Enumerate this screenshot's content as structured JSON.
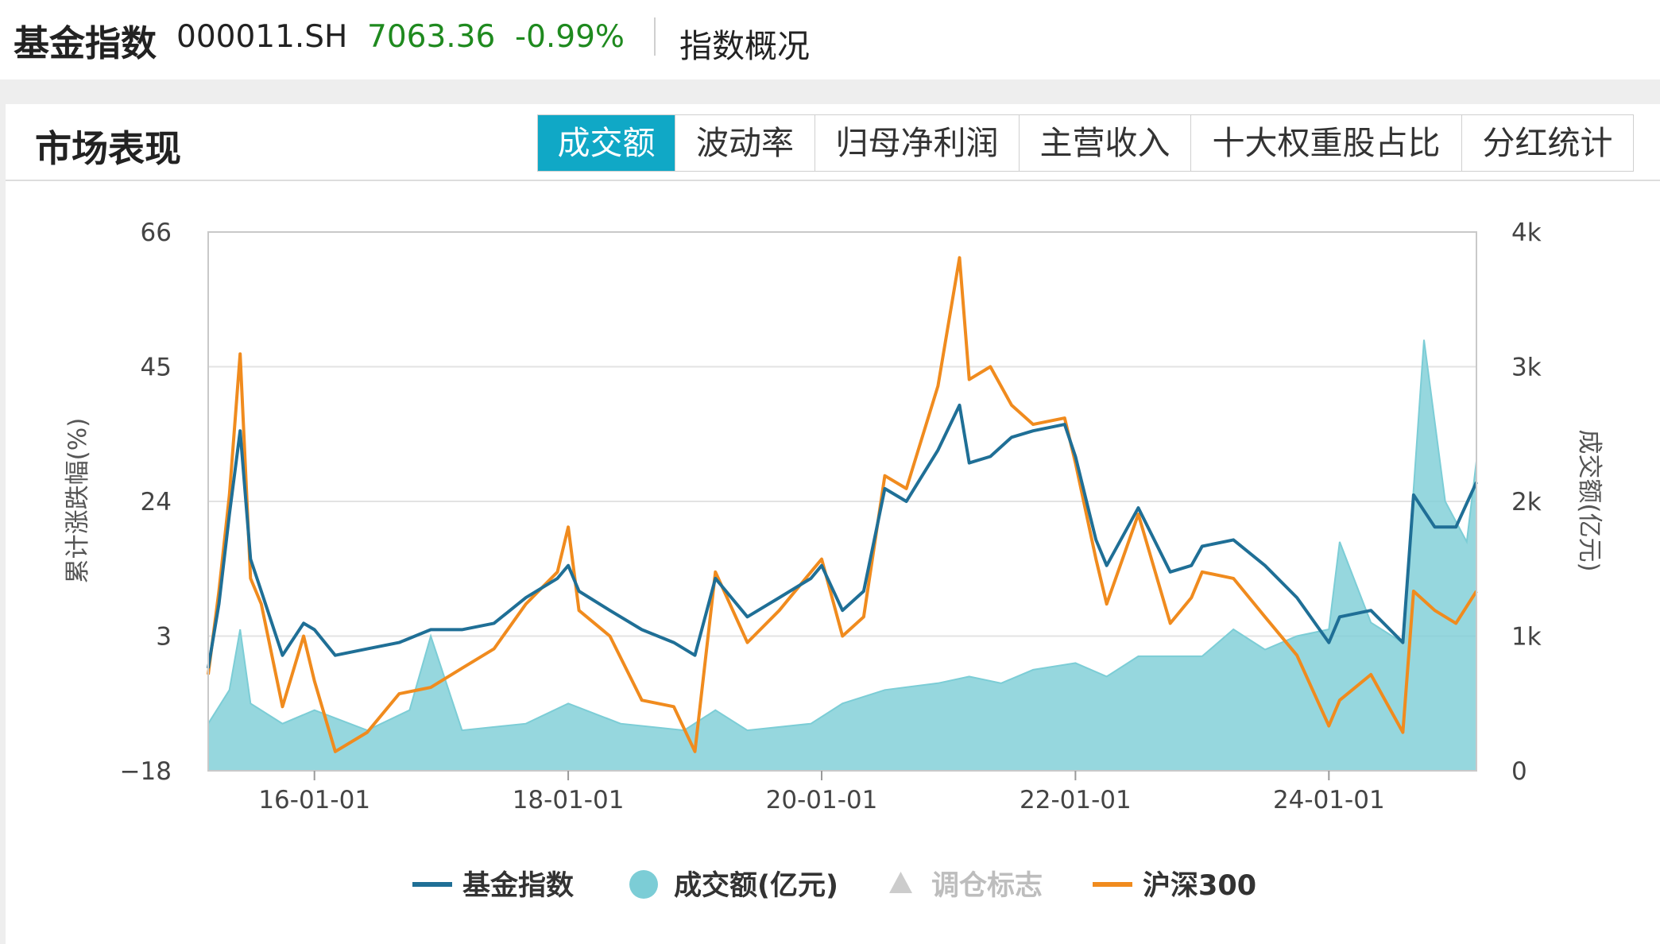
{
  "header": {
    "name": "基金指数",
    "code": "000011.SH",
    "price": "7063.36",
    "change": "-0.99%",
    "overview_link": "指数概况"
  },
  "section": {
    "title": "市场表现",
    "tabs": [
      {
        "label": "成交额",
        "active": true
      },
      {
        "label": "波动率",
        "active": false
      },
      {
        "label": "归母净利润",
        "active": false
      },
      {
        "label": "主营收入",
        "active": false
      },
      {
        "label": "十大权重股占比",
        "active": false
      },
      {
        "label": "分红统计",
        "active": false
      }
    ]
  },
  "colors": {
    "fund_index": "#1f6f96",
    "volume": "#7ccdd6",
    "csi300": "#f08b1e",
    "rebalance": "#cccccc",
    "active_tab": "#10a8c6",
    "price_down": "#1f8a1f"
  },
  "chart_data": {
    "type": "line",
    "y_left_label": "累计涨跌幅(%)",
    "y_right_label": "成交额(亿元)",
    "y_left_range": [
      -18,
      66
    ],
    "y_left_ticks": [
      "66",
      "45",
      "24",
      "3",
      "−18"
    ],
    "y_right_range": [
      0,
      4000
    ],
    "y_right_ticks": [
      "4k",
      "3k",
      "2k",
      "1k",
      "0"
    ],
    "x_range": [
      "2015-03-01",
      "2025-03-01"
    ],
    "x_ticks": [
      {
        "date": "2016-01-01",
        "label": "16-01-01"
      },
      {
        "date": "2018-01-01",
        "label": "18-01-01"
      },
      {
        "date": "2020-01-01",
        "label": "20-01-01"
      },
      {
        "date": "2022-01-01",
        "label": "22-01-01"
      },
      {
        "date": "2024-01-01",
        "label": "24-01-01"
      }
    ],
    "legend": {
      "position": "bottom",
      "items": [
        {
          "name": "基金指数",
          "marker": "line"
        },
        {
          "name": "成交额(亿元)",
          "marker": "circle"
        },
        {
          "name": "调仓标志",
          "marker": "triangle"
        },
        {
          "name": "沪深300",
          "marker": "line"
        }
      ]
    },
    "series": [
      {
        "name": "基金指数",
        "axis": "left",
        "points": [
          [
            "2015-03-01",
            -2
          ],
          [
            "2015-04-01",
            8
          ],
          [
            "2015-05-01",
            22
          ],
          [
            "2015-06-01",
            35
          ],
          [
            "2015-07-01",
            15
          ],
          [
            "2015-08-01",
            10
          ],
          [
            "2015-10-01",
            0
          ],
          [
            "2015-12-01",
            5
          ],
          [
            "2016-01-01",
            4
          ],
          [
            "2016-03-01",
            0
          ],
          [
            "2016-06-01",
            1
          ],
          [
            "2016-09-01",
            2
          ],
          [
            "2016-12-01",
            4
          ],
          [
            "2017-03-01",
            4
          ],
          [
            "2017-06-01",
            5
          ],
          [
            "2017-09-01",
            9
          ],
          [
            "2017-12-01",
            12
          ],
          [
            "2018-01-01",
            14
          ],
          [
            "2018-02-01",
            10
          ],
          [
            "2018-05-01",
            7
          ],
          [
            "2018-08-01",
            4
          ],
          [
            "2018-11-01",
            2
          ],
          [
            "2019-01-01",
            0
          ],
          [
            "2019-03-01",
            12
          ],
          [
            "2019-06-01",
            6
          ],
          [
            "2019-09-01",
            9
          ],
          [
            "2019-12-01",
            12
          ],
          [
            "2020-01-01",
            14
          ],
          [
            "2020-03-01",
            7
          ],
          [
            "2020-05-01",
            10
          ],
          [
            "2020-07-01",
            26
          ],
          [
            "2020-09-01",
            24
          ],
          [
            "2020-12-01",
            32
          ],
          [
            "2021-02-01",
            39
          ],
          [
            "2021-03-01",
            30
          ],
          [
            "2021-05-01",
            31
          ],
          [
            "2021-07-01",
            34
          ],
          [
            "2021-09-01",
            35
          ],
          [
            "2021-12-01",
            36
          ],
          [
            "2022-01-01",
            31
          ],
          [
            "2022-03-01",
            18
          ],
          [
            "2022-04-01",
            14
          ],
          [
            "2022-07-01",
            23
          ],
          [
            "2022-10-01",
            13
          ],
          [
            "2022-12-01",
            14
          ],
          [
            "2023-01-01",
            17
          ],
          [
            "2023-04-01",
            18
          ],
          [
            "2023-07-01",
            14
          ],
          [
            "2023-10-01",
            9
          ],
          [
            "2024-01-01",
            2
          ],
          [
            "2024-02-01",
            6
          ],
          [
            "2024-05-01",
            7
          ],
          [
            "2024-08-01",
            2
          ],
          [
            "2024-09-01",
            25
          ],
          [
            "2024-11-01",
            20
          ],
          [
            "2025-01-01",
            20
          ],
          [
            "2025-03-01",
            27
          ]
        ]
      },
      {
        "name": "沪深300",
        "axis": "left",
        "points": [
          [
            "2015-03-01",
            -3
          ],
          [
            "2015-04-01",
            10
          ],
          [
            "2015-05-01",
            25
          ],
          [
            "2015-06-01",
            47
          ],
          [
            "2015-07-01",
            12
          ],
          [
            "2015-08-01",
            8
          ],
          [
            "2015-10-01",
            -8
          ],
          [
            "2015-12-01",
            3
          ],
          [
            "2016-01-01",
            -4
          ],
          [
            "2016-03-01",
            -15
          ],
          [
            "2016-06-01",
            -12
          ],
          [
            "2016-09-01",
            -6
          ],
          [
            "2016-12-01",
            -5
          ],
          [
            "2017-03-01",
            -2
          ],
          [
            "2017-06-01",
            1
          ],
          [
            "2017-09-01",
            8
          ],
          [
            "2017-12-01",
            13
          ],
          [
            "2018-01-01",
            20
          ],
          [
            "2018-02-01",
            7
          ],
          [
            "2018-05-01",
            3
          ],
          [
            "2018-08-01",
            -7
          ],
          [
            "2018-11-01",
            -8
          ],
          [
            "2019-01-01",
            -15
          ],
          [
            "2019-03-01",
            13
          ],
          [
            "2019-06-01",
            2
          ],
          [
            "2019-09-01",
            7
          ],
          [
            "2019-12-01",
            13
          ],
          [
            "2020-01-01",
            15
          ],
          [
            "2020-03-01",
            3
          ],
          [
            "2020-05-01",
            6
          ],
          [
            "2020-07-01",
            28
          ],
          [
            "2020-09-01",
            26
          ],
          [
            "2020-12-01",
            42
          ],
          [
            "2021-02-01",
            62
          ],
          [
            "2021-03-01",
            43
          ],
          [
            "2021-05-01",
            45
          ],
          [
            "2021-07-01",
            39
          ],
          [
            "2021-09-01",
            36
          ],
          [
            "2021-12-01",
            37
          ],
          [
            "2022-01-01",
            30
          ],
          [
            "2022-03-01",
            15
          ],
          [
            "2022-04-01",
            8
          ],
          [
            "2022-07-01",
            22
          ],
          [
            "2022-10-01",
            5
          ],
          [
            "2022-12-01",
            9
          ],
          [
            "2023-01-01",
            13
          ],
          [
            "2023-04-01",
            12
          ],
          [
            "2023-07-01",
            6
          ],
          [
            "2023-10-01",
            0
          ],
          [
            "2024-01-01",
            -11
          ],
          [
            "2024-02-01",
            -7
          ],
          [
            "2024-05-01",
            -3
          ],
          [
            "2024-08-01",
            -12
          ],
          [
            "2024-09-01",
            10
          ],
          [
            "2024-11-01",
            7
          ],
          [
            "2025-01-01",
            5
          ],
          [
            "2025-03-01",
            10
          ]
        ]
      },
      {
        "name": "成交额(亿元)",
        "axis": "right",
        "type": "area",
        "points": [
          [
            "2015-03-01",
            350
          ],
          [
            "2015-05-01",
            600
          ],
          [
            "2015-06-01",
            1050
          ],
          [
            "2015-07-01",
            500
          ],
          [
            "2015-10-01",
            350
          ],
          [
            "2016-01-01",
            450
          ],
          [
            "2016-06-01",
            300
          ],
          [
            "2016-10-01",
            450
          ],
          [
            "2016-12-01",
            1000
          ],
          [
            "2017-03-01",
            300
          ],
          [
            "2017-09-01",
            350
          ],
          [
            "2018-01-01",
            500
          ],
          [
            "2018-06-01",
            350
          ],
          [
            "2018-12-01",
            300
          ],
          [
            "2019-03-01",
            450
          ],
          [
            "2019-06-01",
            300
          ],
          [
            "2019-12-01",
            350
          ],
          [
            "2020-03-01",
            500
          ],
          [
            "2020-07-01",
            600
          ],
          [
            "2020-12-01",
            650
          ],
          [
            "2021-03-01",
            700
          ],
          [
            "2021-06-01",
            650
          ],
          [
            "2021-09-01",
            750
          ],
          [
            "2022-01-01",
            800
          ],
          [
            "2022-04-01",
            700
          ],
          [
            "2022-07-01",
            850
          ],
          [
            "2022-10-01",
            850
          ],
          [
            "2023-01-01",
            850
          ],
          [
            "2023-04-01",
            1050
          ],
          [
            "2023-07-01",
            900
          ],
          [
            "2023-10-01",
            1000
          ],
          [
            "2024-01-01",
            1050
          ],
          [
            "2024-02-01",
            1700
          ],
          [
            "2024-05-01",
            1100
          ],
          [
            "2024-08-01",
            950
          ],
          [
            "2024-10-01",
            3200
          ],
          [
            "2024-12-01",
            2000
          ],
          [
            "2025-02-01",
            1700
          ],
          [
            "2025-03-01",
            2300
          ]
        ]
      }
    ]
  }
}
